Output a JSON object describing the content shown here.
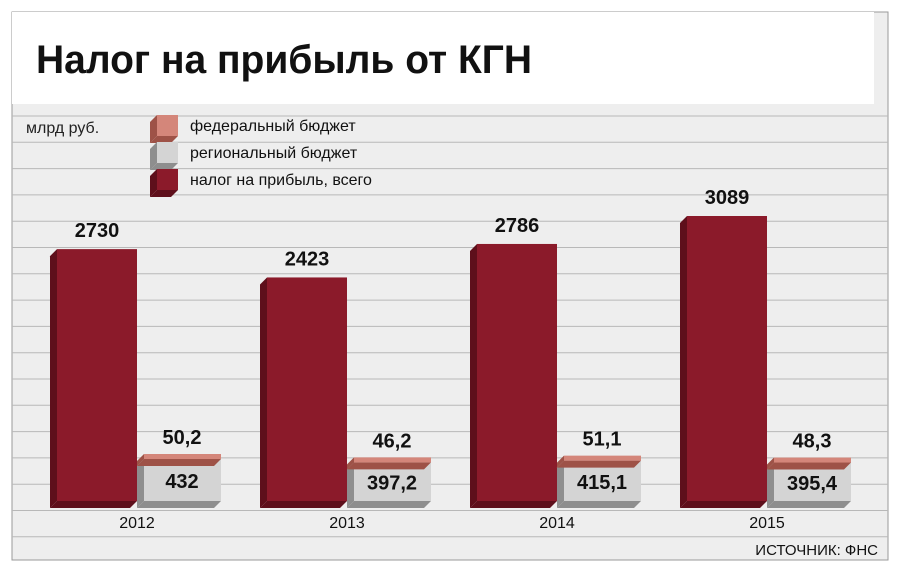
{
  "title": "Налог на прибыль от КГН",
  "unit_label": "млрд руб.",
  "source": "ИСТОЧНИК: ФНС",
  "colors": {
    "total": "#8b1a2a",
    "total_dark": "#5e0f1b",
    "regional": "#d4d4d4",
    "regional_dark": "#8e8e8e",
    "federal": "#d4867a",
    "federal_dark": "#9e5247",
    "background": "#eeeeee",
    "grid": "#b8b8b8"
  },
  "chart_data": {
    "type": "bar",
    "categories": [
      "2012",
      "2013",
      "2014",
      "2015"
    ],
    "series": [
      {
        "name": "налог на прибыль, всего",
        "key": "total",
        "values": [
          2730,
          2423,
          2786,
          3089
        ],
        "labels": [
          "2730",
          "2423",
          "2786",
          "3089"
        ]
      },
      {
        "name": "региональный бюджет",
        "key": "regional",
        "values": [
          432,
          397.2,
          415.1,
          395.4
        ],
        "labels": [
          "432",
          "397,2",
          "415,1",
          "395,4"
        ]
      },
      {
        "name": "федеральный бюджет",
        "key": "federal",
        "values": [
          50.2,
          46.2,
          51.1,
          48.3
        ],
        "labels": [
          "50,2",
          "46,2",
          "51,1",
          "48,3"
        ]
      }
    ],
    "stacked_groups": [
      [
        "total"
      ],
      [
        "regional",
        "federal"
      ]
    ],
    "legend": [
      {
        "label": "федеральный бюджет",
        "key": "federal"
      },
      {
        "label": "региональный бюджет",
        "key": "regional"
      },
      {
        "label": "налог на прибыль, всего",
        "key": "total"
      }
    ],
    "grid": true,
    "legend_position": "top-left"
  }
}
